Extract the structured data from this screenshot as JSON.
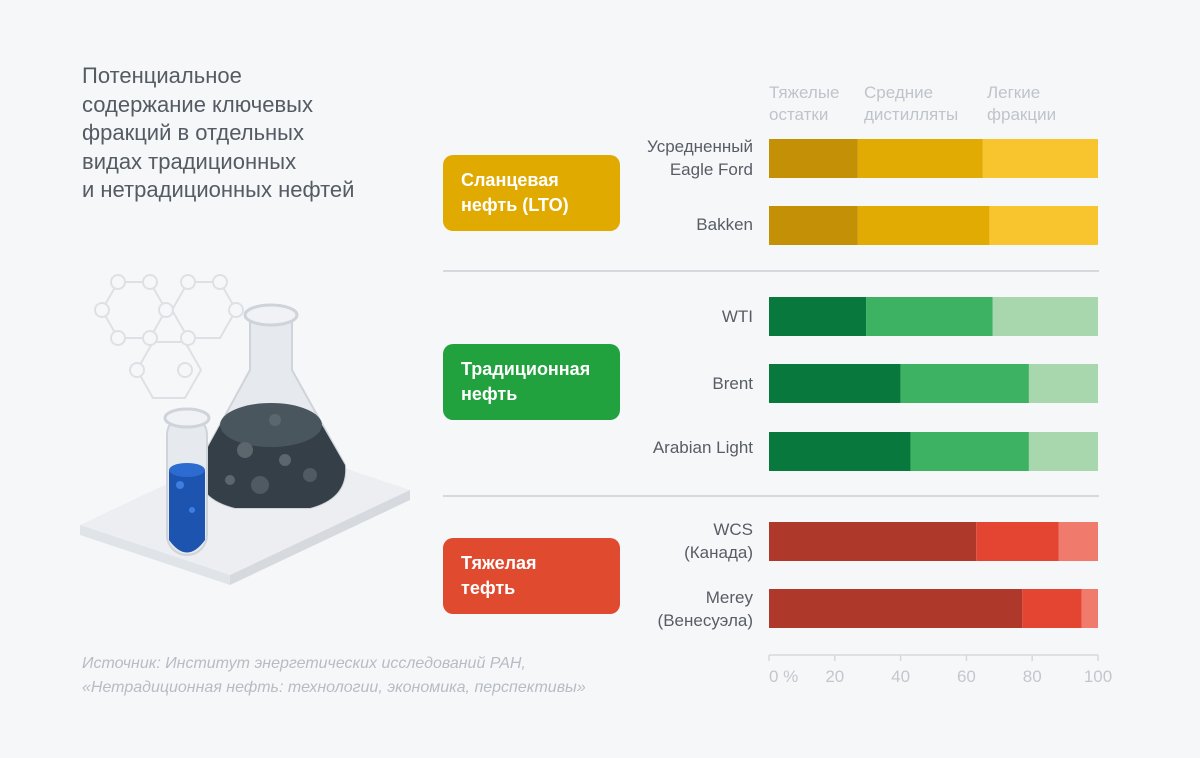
{
  "title_lines": [
    "Потенциальное",
    "содержание ключевых",
    "фракций в отдельных",
    "видах традиционных",
    "и нетрадиционных нефтей"
  ],
  "source_lines": [
    "Источник: Институт энергетических исследований РАН,",
    "«Нетрадиционная нефть: технологии, экономика, перспективы»"
  ],
  "legend": [
    {
      "lines": [
        "Тяжелые",
        "остатки"
      ]
    },
    {
      "lines": [
        "Средние",
        "дистилляты"
      ]
    },
    {
      "lines": [
        "Легкие",
        "фракции"
      ]
    }
  ],
  "groups": [
    {
      "label_lines": [
        "Сланцевая",
        "нефть (LTO)"
      ],
      "color": "#e1aa00"
    },
    {
      "label_lines": [
        "Традиционная",
        "нефть"
      ],
      "color": "#22a13f"
    },
    {
      "label_lines": [
        "Тяжелая",
        "тефть"
      ],
      "color": "#e04a2f"
    }
  ],
  "chart_data": {
    "type": "bar",
    "orientation": "horizontal",
    "stacked": true,
    "categories": [
      "Усредненный Eagle Ford",
      "Bakken",
      "WTI",
      "Brent",
      "Arabian Light",
      "WCS (Канада)",
      "Merey (Венесуэла)"
    ],
    "series": [
      {
        "name": "Тяжелые остатки",
        "values": [
          27,
          27,
          29.5,
          40,
          43,
          63,
          77
        ]
      },
      {
        "name": "Средние дистилляты",
        "values": [
          38,
          40,
          38.5,
          39,
          36,
          25,
          18
        ]
      },
      {
        "name": "Легкие фракции",
        "values": [
          35,
          33,
          32,
          21,
          21,
          12,
          5
        ]
      }
    ],
    "colors": [
      [
        "#c49106",
        "#e2ab03",
        "#f8c52e"
      ],
      [
        "#c49106",
        "#e2ab03",
        "#f8c52e"
      ],
      [
        "#09783c",
        "#3cb262",
        "#a8d7ae"
      ],
      [
        "#09783c",
        "#3cb262",
        "#a8d7ae"
      ],
      [
        "#09783c",
        "#3cb262",
        "#a8d7ae"
      ],
      [
        "#ae392b",
        "#e34532",
        "#f07a6c"
      ],
      [
        "#ae392b",
        "#e34532",
        "#f07a6c"
      ]
    ],
    "xlim": [
      0,
      100
    ],
    "x_ticks": [
      "0 %",
      "20",
      "40",
      "60",
      "80",
      "100"
    ]
  },
  "row_label_lines": [
    [
      "Усредненный",
      "Eagle Ford"
    ],
    [
      "Bakken"
    ],
    [
      "WTI"
    ],
    [
      "Brent"
    ],
    [
      "Arabian Light"
    ],
    [
      "WCS",
      "(Канада)"
    ],
    [
      "Merey",
      "(Венесуэла)"
    ]
  ]
}
